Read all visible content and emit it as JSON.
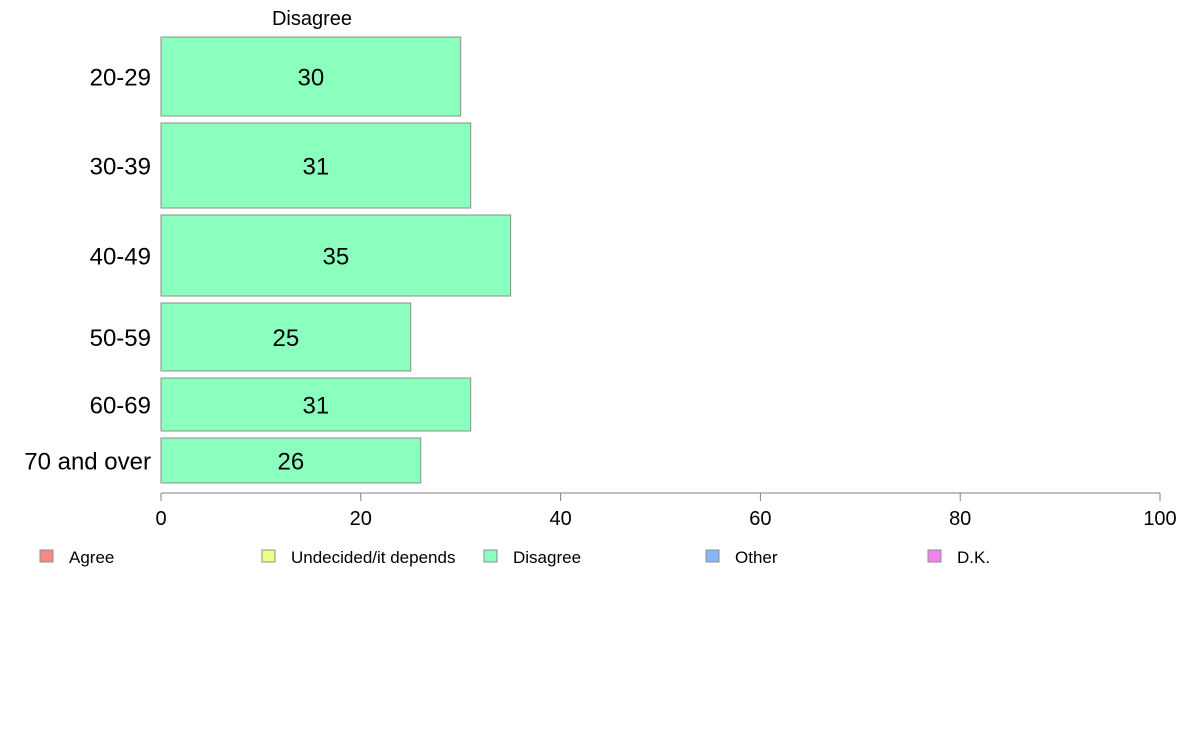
{
  "chart_data": {
    "type": "bar",
    "orientation": "horizontal",
    "title": "Disagree",
    "categories": [
      "20-29",
      "30-39",
      "40-49",
      "50-59",
      "60-69",
      "70 and over"
    ],
    "series": [
      {
        "name": "Disagree",
        "values": [
          30,
          31,
          35,
          25,
          31,
          26
        ],
        "color": "#8affbe"
      }
    ],
    "xlim": [
      0,
      100
    ],
    "xticks": [
      "0",
      "20",
      "40",
      "60",
      "80",
      "100"
    ],
    "grid": false,
    "legend": {
      "position": "bottom",
      "entries": [
        {
          "label": "Agree",
          "color": "#f58a85"
        },
        {
          "label": "Undecided/it depends",
          "color": "#eeff85"
        },
        {
          "label": "Disagree",
          "color": "#8affbe"
        },
        {
          "label": "Other",
          "color": "#85b8f5"
        },
        {
          "label": "D.K.",
          "color": "#ee85ee"
        }
      ]
    }
  }
}
